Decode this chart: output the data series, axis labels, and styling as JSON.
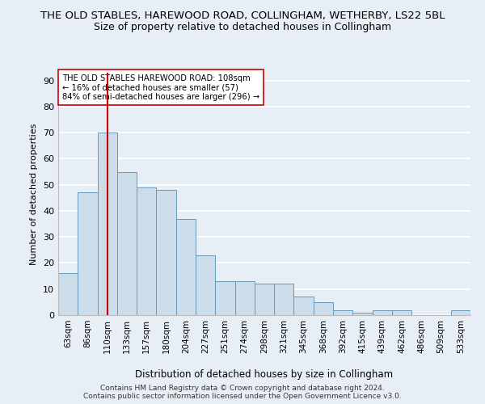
{
  "title": "THE OLD STABLES, HAREWOOD ROAD, COLLINGHAM, WETHERBY, LS22 5BL",
  "subtitle": "Size of property relative to detached houses in Collingham",
  "xlabel": "Distribution of detached houses by size in Collingham",
  "ylabel": "Number of detached properties",
  "bar_color": "#ccdce8",
  "bar_edge_color": "#6699bb",
  "categories": [
    "63sqm",
    "86sqm",
    "110sqm",
    "133sqm",
    "157sqm",
    "180sqm",
    "204sqm",
    "227sqm",
    "251sqm",
    "274sqm",
    "298sqm",
    "321sqm",
    "345sqm",
    "368sqm",
    "392sqm",
    "415sqm",
    "439sqm",
    "462sqm",
    "486sqm",
    "509sqm",
    "533sqm"
  ],
  "values": [
    16,
    47,
    70,
    55,
    49,
    48,
    37,
    23,
    13,
    13,
    12,
    12,
    7,
    5,
    2,
    1,
    2,
    2,
    0,
    0,
    2
  ],
  "ylim": [
    0,
    93
  ],
  "yticks": [
    0,
    10,
    20,
    30,
    40,
    50,
    60,
    70,
    80,
    90
  ],
  "vline_x": 2,
  "vline_color": "#cc0000",
  "annotation_text": "THE OLD STABLES HAREWOOD ROAD: 108sqm\n← 16% of detached houses are smaller (57)\n84% of semi-detached houses are larger (296) →",
  "annotation_box_color": "#ffffff",
  "annotation_box_edge": "#cc0000",
  "footer_line1": "Contains HM Land Registry data © Crown copyright and database right 2024.",
  "footer_line2": "Contains public sector information licensed under the Open Government Licence v3.0.",
  "bg_color": "#e8eef6",
  "plot_bg_color": "#e8eef6",
  "grid_color": "#ffffff",
  "title_fontsize": 9.5,
  "subtitle_fontsize": 9
}
